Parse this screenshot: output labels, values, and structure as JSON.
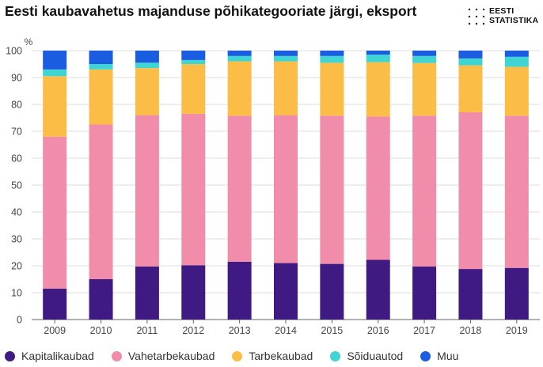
{
  "title": "Eesti kaubavahetus majanduse põhikategooriate järgi, eksport",
  "logo": {
    "line1": "EESTI",
    "line2": "STATISTIKA"
  },
  "chart_data": {
    "type": "bar",
    "stacked": true,
    "ylabel": "%",
    "ylim": [
      0,
      100
    ],
    "yticks": [
      0,
      10,
      20,
      30,
      40,
      50,
      60,
      70,
      80,
      90,
      100
    ],
    "grid": true,
    "legend_position": "bottom",
    "categories": [
      "2009",
      "2010",
      "2011",
      "2012",
      "2013",
      "2014",
      "2015",
      "2016",
      "2017",
      "2018",
      "2019"
    ],
    "series": [
      {
        "name": "Kapitalikaubad",
        "color": "#3f1a82",
        "values": [
          11.5,
          15,
          19.7,
          20.2,
          21.5,
          21,
          20.7,
          22.2,
          19.7,
          18.8,
          19.2
        ]
      },
      {
        "name": "Vahetarbekaubad",
        "color": "#f28cab",
        "values": [
          56.5,
          57.5,
          56.3,
          56.3,
          54.3,
          55,
          55.1,
          53.3,
          56.1,
          58.3,
          56.6
        ]
      },
      {
        "name": "Tarbekaubad",
        "color": "#fbbd45",
        "values": [
          22.5,
          20.5,
          17.5,
          18.5,
          20.2,
          20,
          19.7,
          20.2,
          19.6,
          17.4,
          18.2
        ]
      },
      {
        "name": "Sõiduautod",
        "color": "#3fd5d3",
        "values": [
          2.5,
          2,
          2,
          1.5,
          2,
          2,
          2.5,
          2.8,
          2.6,
          2.6,
          3.7
        ]
      },
      {
        "name": "Muu",
        "color": "#1a5de0",
        "values": [
          7,
          5,
          4.5,
          3.5,
          2,
          2,
          2,
          1.5,
          2,
          2.9,
          2.3
        ]
      }
    ]
  }
}
